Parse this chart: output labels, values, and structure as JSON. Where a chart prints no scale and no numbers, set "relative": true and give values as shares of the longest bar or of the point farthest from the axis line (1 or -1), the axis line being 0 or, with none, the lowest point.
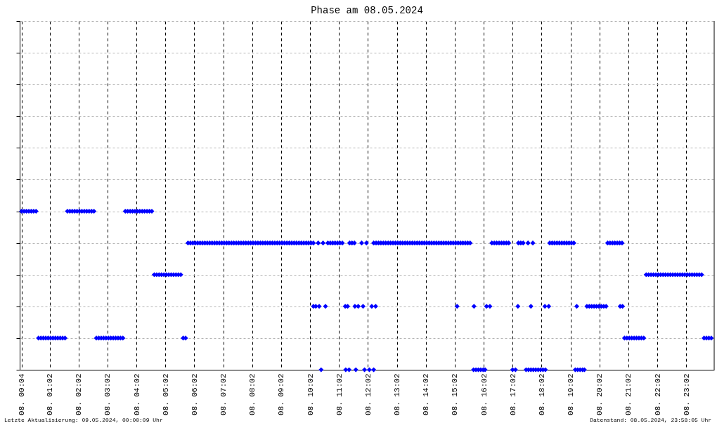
{
  "chart_data": {
    "type": "scatter",
    "title": "Phase am 08.05.2024",
    "relative": true,
    "marker": "diamond",
    "grid": true,
    "xlim": [
      "2024-05-08T00:00",
      "2024-05-09T00:00"
    ],
    "xticks": [
      {
        "value": "2024-05-08T00:04",
        "label": "08. 00:04"
      },
      {
        "value": "2024-05-08T01:02",
        "label": "08. 01:02"
      },
      {
        "value": "2024-05-08T02:02",
        "label": "08. 02:02"
      },
      {
        "value": "2024-05-08T03:02",
        "label": "08. 03:02"
      },
      {
        "value": "2024-05-08T04:02",
        "label": "08. 04:02"
      },
      {
        "value": "2024-05-08T05:02",
        "label": "08. 05:02"
      },
      {
        "value": "2024-05-08T06:02",
        "label": "08. 06:02"
      },
      {
        "value": "2024-05-08T07:02",
        "label": "08. 07:02"
      },
      {
        "value": "2024-05-08T08:02",
        "label": "08. 08:02"
      },
      {
        "value": "2024-05-08T09:02",
        "label": "08. 09:02"
      },
      {
        "value": "2024-05-08T10:02",
        "label": "08. 10:02"
      },
      {
        "value": "2024-05-08T11:02",
        "label": "08. 11:02"
      },
      {
        "value": "2024-05-08T12:02",
        "label": "08. 12:02"
      },
      {
        "value": "2024-05-08T13:02",
        "label": "08. 13:02"
      },
      {
        "value": "2024-05-08T14:02",
        "label": "08. 14:02"
      },
      {
        "value": "2024-05-08T15:02",
        "label": "08. 15:02"
      },
      {
        "value": "2024-05-08T16:02",
        "label": "08. 16:02"
      },
      {
        "value": "2024-05-08T17:02",
        "label": "08. 17:02"
      },
      {
        "value": "2024-05-08T18:02",
        "label": "08. 18:02"
      },
      {
        "value": "2024-05-08T19:02",
        "label": "08. 19:02"
      },
      {
        "value": "2024-05-08T20:02",
        "label": "08. 20:02"
      },
      {
        "value": "2024-05-08T21:02",
        "label": "08. 21:02"
      },
      {
        "value": "2024-05-08T22:02",
        "label": "08. 22:02"
      },
      {
        "value": "2024-05-08T23:02",
        "label": "08. 23:02"
      }
    ],
    "series": [
      {
        "color": "#0000ff",
        "x": [
          "2024-05-08T00:04",
          "2024-05-08T00:09",
          "2024-05-08T00:14",
          "2024-05-08T00:19",
          "2024-05-08T00:24",
          "2024-05-08T00:29",
          "2024-05-08T00:34",
          "2024-05-08T01:39",
          "2024-05-08T01:44",
          "2024-05-08T01:49",
          "2024-05-08T01:54",
          "2024-05-08T01:59",
          "2024-05-08T02:04",
          "2024-05-08T02:09",
          "2024-05-08T02:14",
          "2024-05-08T02:19",
          "2024-05-08T02:24",
          "2024-05-08T02:29",
          "2024-05-08T02:34",
          "2024-05-08T03:39",
          "2024-05-08T03:44",
          "2024-05-08T03:49",
          "2024-05-08T03:54",
          "2024-05-08T03:59",
          "2024-05-08T04:04",
          "2024-05-08T04:09",
          "2024-05-08T04:14",
          "2024-05-08T04:19",
          "2024-05-08T04:24",
          "2024-05-08T04:29",
          "2024-05-08T04:34",
          "2024-05-08T00:39",
          "2024-05-08T00:44",
          "2024-05-08T00:49",
          "2024-05-08T00:54",
          "2024-05-08T00:59",
          "2024-05-08T01:04",
          "2024-05-08T01:09",
          "2024-05-08T01:14",
          "2024-05-08T01:19",
          "2024-05-08T01:24",
          "2024-05-08T01:29",
          "2024-05-08T01:34",
          "2024-05-08T02:39",
          "2024-05-08T02:44",
          "2024-05-08T02:49",
          "2024-05-08T02:54",
          "2024-05-08T02:59",
          "2024-05-08T03:04",
          "2024-05-08T03:09",
          "2024-05-08T03:14",
          "2024-05-08T03:19",
          "2024-05-08T03:24",
          "2024-05-08T03:29",
          "2024-05-08T03:34",
          "2024-05-08T05:39",
          "2024-05-08T05:44",
          "2024-05-08T20:54",
          "2024-05-08T20:59",
          "2024-05-08T21:04",
          "2024-05-08T21:09",
          "2024-05-08T21:14",
          "2024-05-08T21:19",
          "2024-05-08T21:24",
          "2024-05-08T21:29",
          "2024-05-08T21:34",
          "2024-05-08T23:39",
          "2024-05-08T23:44",
          "2024-05-08T23:49",
          "2024-05-08T23:54",
          "2024-05-08T04:39",
          "2024-05-08T04:44",
          "2024-05-08T04:49",
          "2024-05-08T04:54",
          "2024-05-08T04:59",
          "2024-05-08T05:04",
          "2024-05-08T05:09",
          "2024-05-08T05:14",
          "2024-05-08T05:19",
          "2024-05-08T05:24",
          "2024-05-08T05:29",
          "2024-05-08T05:34",
          "2024-05-08T21:39",
          "2024-05-08T21:44",
          "2024-05-08T21:49",
          "2024-05-08T21:54",
          "2024-05-08T21:59",
          "2024-05-08T22:04",
          "2024-05-08T22:09",
          "2024-05-08T22:14",
          "2024-05-08T22:19",
          "2024-05-08T22:24",
          "2024-05-08T22:29",
          "2024-05-08T22:34",
          "2024-05-08T22:39",
          "2024-05-08T22:44",
          "2024-05-08T22:49",
          "2024-05-08T22:54",
          "2024-05-08T22:59",
          "2024-05-08T23:04",
          "2024-05-08T23:09",
          "2024-05-08T23:14",
          "2024-05-08T23:19",
          "2024-05-08T23:24",
          "2024-05-08T23:29",
          "2024-05-08T23:34",
          "2024-05-08T05:49",
          "2024-05-08T05:54",
          "2024-05-08T05:59",
          "2024-05-08T06:04",
          "2024-05-08T06:09",
          "2024-05-08T06:14",
          "2024-05-08T06:19",
          "2024-05-08T06:24",
          "2024-05-08T06:29",
          "2024-05-08T06:34",
          "2024-05-08T06:39",
          "2024-05-08T06:44",
          "2024-05-08T06:49",
          "2024-05-08T06:54",
          "2024-05-08T06:59",
          "2024-05-08T07:04",
          "2024-05-08T07:09",
          "2024-05-08T07:14",
          "2024-05-08T07:19",
          "2024-05-08T07:24",
          "2024-05-08T07:29",
          "2024-05-08T07:34",
          "2024-05-08T07:39",
          "2024-05-08T07:44",
          "2024-05-08T07:49",
          "2024-05-08T07:54",
          "2024-05-08T07:59",
          "2024-05-08T08:04",
          "2024-05-08T08:09",
          "2024-05-08T08:14",
          "2024-05-08T08:19",
          "2024-05-08T08:24",
          "2024-05-08T08:29",
          "2024-05-08T08:34",
          "2024-05-08T08:39",
          "2024-05-08T08:44",
          "2024-05-08T08:49",
          "2024-05-08T08:54",
          "2024-05-08T08:59",
          "2024-05-08T09:04",
          "2024-05-08T09:09",
          "2024-05-08T09:14",
          "2024-05-08T09:19",
          "2024-05-08T09:24",
          "2024-05-08T09:29",
          "2024-05-08T09:34",
          "2024-05-08T09:39",
          "2024-05-08T09:44",
          "2024-05-08T09:49",
          "2024-05-08T09:54",
          "2024-05-08T09:59",
          "2024-05-08T10:04",
          "2024-05-08T10:09",
          "2024-05-08T10:19",
          "2024-05-08T10:29",
          "2024-05-08T10:39",
          "2024-05-08T10:44",
          "2024-05-08T10:49",
          "2024-05-08T10:54",
          "2024-05-08T10:59",
          "2024-05-08T11:04",
          "2024-05-08T11:09",
          "2024-05-08T11:24",
          "2024-05-08T11:29",
          "2024-05-08T11:34",
          "2024-05-08T11:49",
          "2024-05-08T11:59",
          "2024-05-08T12:14",
          "2024-05-08T12:19",
          "2024-05-08T12:24",
          "2024-05-08T12:29",
          "2024-05-08T12:34",
          "2024-05-08T12:39",
          "2024-05-08T12:44",
          "2024-05-08T12:49",
          "2024-05-08T12:54",
          "2024-05-08T12:59",
          "2024-05-08T13:04",
          "2024-05-08T13:09",
          "2024-05-08T13:14",
          "2024-05-08T13:19",
          "2024-05-08T13:24",
          "2024-05-08T13:29",
          "2024-05-08T13:34",
          "2024-05-08T13:39",
          "2024-05-08T13:44",
          "2024-05-08T13:49",
          "2024-05-08T13:54",
          "2024-05-08T13:59",
          "2024-05-08T14:04",
          "2024-05-08T14:09",
          "2024-05-08T14:14",
          "2024-05-08T14:19",
          "2024-05-08T14:24",
          "2024-05-08T14:29",
          "2024-05-08T14:34",
          "2024-05-08T14:39",
          "2024-05-08T14:44",
          "2024-05-08T14:49",
          "2024-05-08T14:54",
          "2024-05-08T14:59",
          "2024-05-08T15:04",
          "2024-05-08T15:09",
          "2024-05-08T15:14",
          "2024-05-08T15:19",
          "2024-05-08T15:24",
          "2024-05-08T15:29",
          "2024-05-08T15:34",
          "2024-05-08T16:19",
          "2024-05-08T16:24",
          "2024-05-08T16:29",
          "2024-05-08T16:34",
          "2024-05-08T16:39",
          "2024-05-08T16:44",
          "2024-05-08T16:49",
          "2024-05-08T16:54",
          "2024-05-08T17:14",
          "2024-05-08T17:19",
          "2024-05-08T17:24",
          "2024-05-08T17:34",
          "2024-05-08T17:44",
          "2024-05-08T18:19",
          "2024-05-08T18:24",
          "2024-05-08T18:29",
          "2024-05-08T18:34",
          "2024-05-08T18:39",
          "2024-05-08T18:44",
          "2024-05-08T18:49",
          "2024-05-08T18:54",
          "2024-05-08T18:59",
          "2024-05-08T19:04",
          "2024-05-08T19:09",
          "2024-05-08T20:19",
          "2024-05-08T20:24",
          "2024-05-08T20:29",
          "2024-05-08T20:34",
          "2024-05-08T20:39",
          "2024-05-08T20:44",
          "2024-05-08T20:49",
          "2024-05-08T10:09",
          "2024-05-08T10:14",
          "2024-05-08T10:21",
          "2024-05-08T10:34",
          "2024-05-08T11:15",
          "2024-05-08T11:20",
          "2024-05-08T11:35",
          "2024-05-08T11:42",
          "2024-05-08T11:52",
          "2024-05-08T12:10",
          "2024-05-08T12:18",
          "2024-05-08T15:07",
          "2024-05-08T15:42",
          "2024-05-08T16:08",
          "2024-05-08T16:15",
          "2024-05-08T17:13",
          "2024-05-08T17:40",
          "2024-05-08T18:09",
          "2024-05-08T18:17",
          "2024-05-08T19:15",
          "2024-05-08T19:36",
          "2024-05-08T19:41",
          "2024-05-08T19:46",
          "2024-05-08T19:51",
          "2024-05-08T19:56",
          "2024-05-08T20:01",
          "2024-05-08T20:06",
          "2024-05-08T20:11",
          "2024-05-08T20:16",
          "2024-05-08T20:45",
          "2024-05-08T20:50",
          "2024-05-08T10:25",
          "2024-05-08T11:16",
          "2024-05-08T11:23",
          "2024-05-08T11:37",
          "2024-05-08T11:55",
          "2024-05-08T12:05",
          "2024-05-08T12:14",
          "2024-05-08T15:41",
          "2024-05-08T15:46",
          "2024-05-08T15:51",
          "2024-05-08T15:56",
          "2024-05-08T16:01",
          "2024-05-08T16:05",
          "2024-05-08T17:02",
          "2024-05-08T17:08",
          "2024-05-08T17:30",
          "2024-05-08T17:35",
          "2024-05-08T17:40",
          "2024-05-08T17:45",
          "2024-05-08T17:50",
          "2024-05-08T17:55",
          "2024-05-08T18:00",
          "2024-05-08T18:05",
          "2024-05-08T18:10",
          "2024-05-08T19:12",
          "2024-05-08T19:17",
          "2024-05-08T19:22",
          "2024-05-08T19:27",
          "2024-05-08T19:31"
        ],
        "values": [
          1,
          1,
          1,
          1,
          1,
          1,
          1,
          1,
          1,
          1,
          1,
          1,
          1,
          1,
          1,
          1,
          1,
          1,
          1,
          1,
          1,
          1,
          1,
          1,
          1,
          1,
          1,
          1,
          1,
          1,
          1,
          0.2,
          0.2,
          0.2,
          0.2,
          0.2,
          0.2,
          0.2,
          0.2,
          0.2,
          0.2,
          0.2,
          0.2,
          0.2,
          0.2,
          0.2,
          0.2,
          0.2,
          0.2,
          0.2,
          0.2,
          0.2,
          0.2,
          0.2,
          0.2,
          0.2,
          0.2,
          0.2,
          0.2,
          0.2,
          0.2,
          0.2,
          0.2,
          0.2,
          0.2,
          0.2,
          0.2,
          0.2,
          0.2,
          0.2,
          0.6,
          0.6,
          0.6,
          0.6,
          0.6,
          0.6,
          0.6,
          0.6,
          0.6,
          0.6,
          0.6,
          0.6,
          0.6,
          0.6,
          0.6,
          0.6,
          0.6,
          0.6,
          0.6,
          0.6,
          0.6,
          0.6,
          0.6,
          0.6,
          0.6,
          0.6,
          0.6,
          0.6,
          0.6,
          0.6,
          0.6,
          0.6,
          0.6,
          0.6,
          0.6,
          0.6,
          0.8,
          0.8,
          0.8,
          0.8,
          0.8,
          0.8,
          0.8,
          0.8,
          0.8,
          0.8,
          0.8,
          0.8,
          0.8,
          0.8,
          0.8,
          0.8,
          0.8,
          0.8,
          0.8,
          0.8,
          0.8,
          0.8,
          0.8,
          0.8,
          0.8,
          0.8,
          0.8,
          0.8,
          0.8,
          0.8,
          0.8,
          0.8,
          0.8,
          0.8,
          0.8,
          0.8,
          0.8,
          0.8,
          0.8,
          0.8,
          0.8,
          0.8,
          0.8,
          0.8,
          0.8,
          0.8,
          0.8,
          0.8,
          0.8,
          0.8,
          0.8,
          0.8,
          0.8,
          0.8,
          0.8,
          0.8,
          0.8,
          0.8,
          0.8,
          0.8,
          0.8,
          0.8,
          0.8,
          0.8,
          0.8,
          0.8,
          0.8,
          0.8,
          0.8,
          0.8,
          0.8,
          0.8,
          0.8,
          0.8,
          0.8,
          0.8,
          0.8,
          0.8,
          0.8,
          0.8,
          0.8,
          0.8,
          0.8,
          0.8,
          0.8,
          0.8,
          0.8,
          0.8,
          0.8,
          0.8,
          0.8,
          0.8,
          0.8,
          0.8,
          0.8,
          0.8,
          0.8,
          0.8,
          0.8,
          0.8,
          0.8,
          0.8,
          0.8,
          0.8,
          0.8,
          0.8,
          0.8,
          0.8,
          0.8,
          0.8,
          0.8,
          0.8,
          0.8,
          0.8,
          0.8,
          0.8,
          0.8,
          0.8,
          0.8,
          0.8,
          0.8,
          0.8,
          0.8,
          0.8,
          0.8,
          0.8,
          0.8,
          0.8,
          0.8,
          0.8,
          0.8,
          0.8,
          0.8,
          0.8,
          0.8,
          0.8,
          0.8,
          0.8,
          0.8,
          0.4,
          0.4,
          0.4,
          0.4,
          0.4,
          0.4,
          0.4,
          0.4,
          0.4,
          0.4,
          0.4,
          0.4,
          0.4,
          0.4,
          0.4,
          0.4,
          0.4,
          0.4,
          0.4,
          0.4,
          0.4,
          0.4,
          0.4,
          0.4,
          0.4,
          0.4,
          0.4,
          0.4,
          0.4,
          0.4,
          0.4,
          0,
          0,
          0,
          0,
          0,
          0,
          0,
          0,
          0,
          0,
          0,
          0,
          0,
          0,
          0,
          0,
          0,
          0,
          0,
          0,
          0,
          0,
          0,
          0,
          0,
          0,
          0,
          0,
          0
        ]
      }
    ],
    "annotations": [
      "Letzte Aktualisierung: 09.05.2024, 00:00:09 Uhr",
      "Datenstand: 08.05.2024, 23:58:05 Uhr"
    ]
  }
}
